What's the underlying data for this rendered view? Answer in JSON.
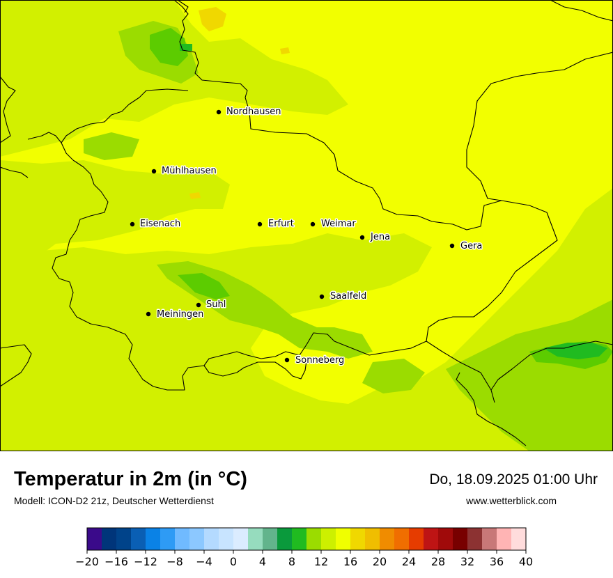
{
  "map": {
    "background_color": "#f2ff00",
    "cities": [
      {
        "name": "Nordhausen"
      },
      {
        "name": "Mühlhausen"
      },
      {
        "name": "Eisenach"
      },
      {
        "name": "Erfurt"
      },
      {
        "name": "Weimar"
      },
      {
        "name": "Jena"
      },
      {
        "name": "Gera"
      },
      {
        "name": "Saalfeld"
      },
      {
        "name": "Suhl"
      },
      {
        "name": "Meiningen"
      },
      {
        "name": "Sonneberg"
      }
    ]
  },
  "footer": {
    "title": "Temperatur in 2m (in °C)",
    "model": "Modell: ICON-D2 21z, Deutscher Wetterdienst",
    "datetime": "Do, 18.09.2025 01:00 Uhr",
    "site": "www.wetterblick.com"
  },
  "legend": {
    "ticks": [
      "−20",
      "−16",
      "−12",
      "−8",
      "−4",
      "0",
      "4",
      "8",
      "12",
      "16",
      "20",
      "24",
      "28",
      "32",
      "36",
      "40"
    ],
    "colors": [
      "#3a0a8a",
      "#00357a",
      "#00438a",
      "#0a5fb4",
      "#0a82e6",
      "#2e9bf5",
      "#70baff",
      "#8cc8ff",
      "#b4daff",
      "#c8e4ff",
      "#dbecff",
      "#96dcbe",
      "#62b48c",
      "#0a9a3c",
      "#20bb20",
      "#9bdc00",
      "#cdf000",
      "#f0ff00",
      "#f0d800",
      "#f0be00",
      "#f08c00",
      "#f06e00",
      "#e63c00",
      "#be1414",
      "#a00a0a",
      "#780000",
      "#8c3232",
      "#c87878",
      "#ffb4b4",
      "#ffdcdc"
    ]
  }
}
